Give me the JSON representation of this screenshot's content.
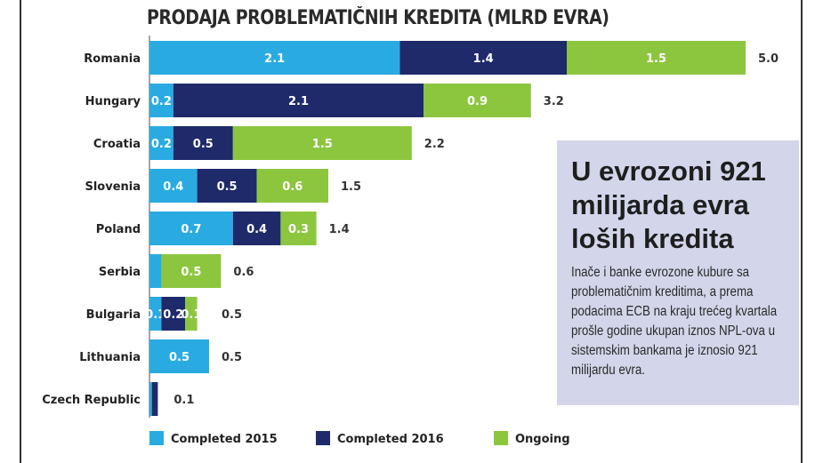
{
  "chart_data": {
    "type": "bar",
    "orientation": "horizontal",
    "stacked": true,
    "title": "PRODAJA PROBLEMATIČNIH KREDITA (MLRD EVRA)",
    "categories": [
      "Romania",
      "Hungary",
      "Croatia",
      "Slovenia",
      "Poland",
      "Serbia",
      "Bulgaria",
      "Lithuania",
      "Czech Republic"
    ],
    "series": [
      {
        "name": "Completed 2015",
        "color": "#29abe2",
        "values": [
          2.1,
          0.2,
          0.2,
          0.4,
          0.7,
          0.1,
          0.1,
          0.5,
          0.02
        ],
        "labels": [
          "2.1",
          "0.2",
          "0.2",
          "0.4",
          "0.7",
          "",
          "0.1",
          "0.5",
          ""
        ]
      },
      {
        "name": "Completed 2016",
        "color": "#1f2a6b",
        "values": [
          1.4,
          2.1,
          0.5,
          0.5,
          0.4,
          0,
          0.2,
          0,
          0.05
        ],
        "labels": [
          "1.4",
          "2.1",
          "0.5",
          "0.5",
          "0.4",
          "",
          "0.2",
          "",
          ""
        ]
      },
      {
        "name": "Ongoing",
        "color": "#8cc63f",
        "values": [
          1.5,
          0.9,
          1.5,
          0.6,
          0.3,
          0.5,
          0.1,
          0,
          0
        ],
        "labels": [
          "1.5",
          "0.9",
          "1.5",
          "0.6",
          "0.3",
          "0.5",
          "0.1",
          "",
          ""
        ]
      }
    ],
    "totals": [
      "5.0",
      "3.2",
      "2.2",
      "1.5",
      "1.4",
      "0.6",
      "0.5",
      "0.5",
      "0.1"
    ],
    "xlim": [
      0,
      5
    ],
    "grid": false,
    "legend_position": "bottom"
  },
  "sidebar": {
    "headline": "U evrozoni 921 milijarda evra loših kredita",
    "body": "Inače i banke evrozone kubure sa problematičnim kreditima, a prema podacima ECB na kraju trećeg kvartala prošle godine ukupan iznos NPL-ova u sistemskim bankama je iznosio 921 milijardu evra."
  }
}
